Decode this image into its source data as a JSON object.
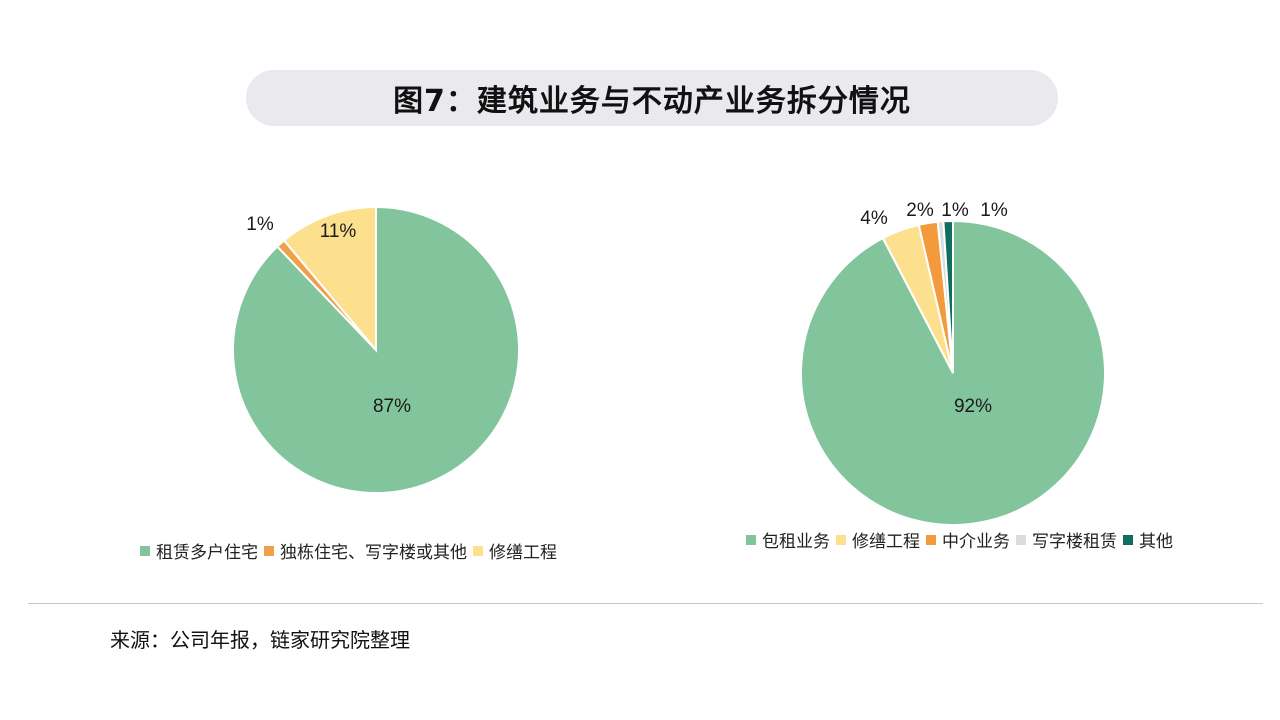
{
  "title": "图7：建筑业务与不动产业务拆分情况",
  "source": "来源：公司年报，链家研究院整理",
  "chart_data": [
    {
      "type": "pie",
      "title": "",
      "start_angle": "12 o'clock, clockwise",
      "slices": [
        {
          "name": "租赁多户住宅",
          "value": 87,
          "label": "87%",
          "color": "#82c59d"
        },
        {
          "name": "独栋住宅、写字楼或其他",
          "value": 1,
          "label": "1%",
          "color": "#f0a04b"
        },
        {
          "name": "修缮工程",
          "value": 11,
          "label": "11%",
          "color": "#fde08e"
        }
      ],
      "legend": [
        "租赁多户住宅",
        "独栋住宅、写字楼或其他",
        "修缮工程"
      ],
      "legend_position": "bottom"
    },
    {
      "type": "pie",
      "title": "",
      "start_angle": "12 o'clock, clockwise",
      "slices": [
        {
          "name": "包租业务",
          "value": 92,
          "label": "92%",
          "color": "#82c59d"
        },
        {
          "name": "修缮工程",
          "value": 4,
          "label": "4%",
          "color": "#fde08e"
        },
        {
          "name": "中介业务",
          "value": 2,
          "label": "2%",
          "color": "#f29a3c"
        },
        {
          "name": "写字楼租赁",
          "value": 0.6,
          "label": "1%",
          "color": "#d9dde0"
        },
        {
          "name": "其他",
          "value": 1,
          "label": "1%",
          "color": "#0f6e5d"
        }
      ],
      "legend": [
        "包租业务",
        "修缮工程",
        "中介业务",
        "写字楼租赁",
        "其他"
      ],
      "legend_position": "bottom"
    }
  ]
}
